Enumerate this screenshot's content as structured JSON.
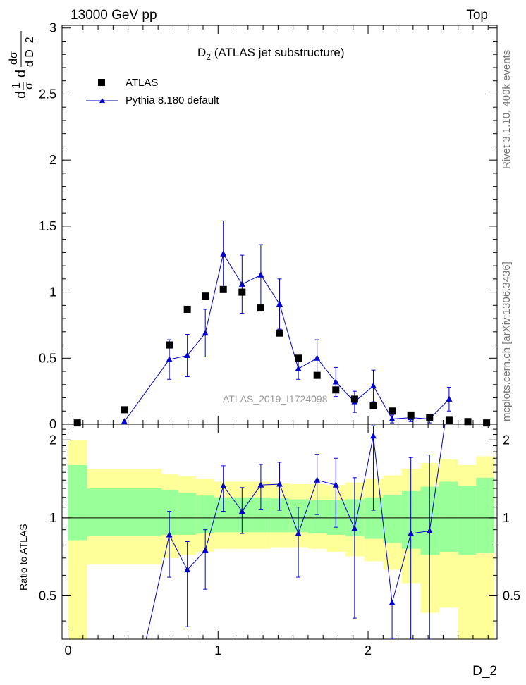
{
  "header": {
    "left": "13000 GeV pp",
    "right": "Top"
  },
  "side_labels": {
    "rivet": "Rivet 3.1.10,  400k events",
    "mcplots": "mcplots.cern.ch [arXiv:1306.3436]"
  },
  "chart_data": {
    "type": "scatter",
    "title_main": "D",
    "title_sub": "2",
    "title_rest": " (ATLAS jet substructure)",
    "watermark": "ATLAS_2019_I1724098",
    "xlabel": "D_2",
    "ylabel": {
      "frac_num": "1",
      "frac_den": "σ",
      "d1": "d",
      "d2": "d",
      "deriv_num": "dσ",
      "deriv_den": "d D_2"
    },
    "xlim": [
      -0.04,
      2.86
    ],
    "ylim": [
      0,
      3.02
    ],
    "ratio_ylim": [
      0.34,
      2.3
    ],
    "x_ticks": [
      "0",
      "1",
      "2"
    ],
    "x_tick_values": [
      0,
      1,
      2
    ],
    "y_ticks": [
      "0",
      "0.5",
      "1",
      "1.5",
      "2",
      "2.5",
      "3"
    ],
    "y_tick_values": [
      0,
      0.5,
      1,
      1.5,
      2,
      2.5,
      3
    ],
    "ratio_ylabel": "Ratio to ATLAS",
    "ratio_ticks": [
      "0.5",
      "1",
      "2"
    ],
    "ratio_tick_values": [
      0.5,
      1,
      2
    ],
    "legend": [
      "ATLAS",
      "Pythia 8.180 default"
    ],
    "series": [
      {
        "name": "ATLAS",
        "marker": "square",
        "color": "#000000",
        "x": [
          0.062,
          0.375,
          0.675,
          0.795,
          0.915,
          1.035,
          1.16,
          1.285,
          1.41,
          1.535,
          1.66,
          1.785,
          1.91,
          2.035,
          2.16,
          2.285,
          2.41,
          2.54,
          2.665,
          2.79
        ],
        "values": [
          0.01,
          0.11,
          0.6,
          0.87,
          0.97,
          1.02,
          1.0,
          0.88,
          0.69,
          0.5,
          0.37,
          0.26,
          0.19,
          0.14,
          0.1,
          0.07,
          0.05,
          0.03,
          0.02,
          0.01
        ]
      },
      {
        "name": "Pythia 8.180 default",
        "marker": "triangle",
        "color": "#0000cc",
        "x": [
          0.375,
          0.675,
          0.795,
          0.915,
          1.035,
          1.16,
          1.285,
          1.41,
          1.535,
          1.66,
          1.785,
          1.91,
          2.035,
          2.16,
          2.285,
          2.41,
          2.54
        ],
        "values": [
          0.02,
          0.49,
          0.52,
          0.69,
          1.29,
          1.06,
          1.13,
          0.91,
          0.42,
          0.5,
          0.32,
          0.17,
          0.29,
          0.04,
          0.05,
          0.04,
          0.19
        ],
        "err": [
          0.0,
          0.15,
          0.16,
          0.18,
          0.25,
          0.22,
          0.23,
          0.19,
          0.08,
          0.14,
          0.11,
          0.08,
          0.12,
          0.03,
          0.03,
          0.03,
          0.09
        ]
      }
    ],
    "ratio": {
      "x": [
        0.675,
        0.795,
        0.915,
        1.035,
        1.16,
        1.285,
        1.41,
        1.535,
        1.66,
        1.785,
        1.91,
        2.035,
        2.16,
        2.285,
        2.41
      ],
      "values": [
        0.86,
        0.63,
        0.75,
        1.33,
        1.06,
        1.34,
        1.35,
        0.87,
        1.4,
        1.34,
        0.91,
        2.07,
        0.47,
        0.87,
        0.89
      ],
      "err_low": [
        0.27,
        0.25,
        0.22,
        0.27,
        0.19,
        0.26,
        0.28,
        0.28,
        0.37,
        0.42,
        0.5,
        1.0,
        0.13,
        0.55,
        0.55
      ],
      "err_high": [
        0.2,
        0.18,
        0.15,
        0.26,
        0.25,
        0.27,
        0.29,
        0.23,
        0.36,
        0.36,
        0.52,
        0.2,
        0.0,
        0.84,
        0.86
      ],
      "offscale_left": [
        0.5,
        0.3
      ],
      "offscale_right": [
        2.54,
        3.0
      ],
      "bands": [
        {
          "x0": 0.0,
          "x1": 0.125,
          "y1_lo": 0.82,
          "y1_hi": 1.6,
          "y2_lo": 0.34,
          "y2_hi": 2.0
        },
        {
          "x0": 0.125,
          "x1": 0.625,
          "y1_lo": 0.85,
          "y1_hi": 1.3,
          "y2_lo": 0.66,
          "y2_hi": 1.55
        },
        {
          "x0": 0.625,
          "x1": 0.735,
          "y1_lo": 0.86,
          "y1_hi": 1.28,
          "y2_lo": 0.7,
          "y2_hi": 1.48
        },
        {
          "x0": 0.735,
          "x1": 0.855,
          "y1_lo": 0.86,
          "y1_hi": 1.25,
          "y2_lo": 0.72,
          "y2_hi": 1.45
        },
        {
          "x0": 0.855,
          "x1": 0.975,
          "y1_lo": 0.87,
          "y1_hi": 1.22,
          "y2_lo": 0.74,
          "y2_hi": 1.42
        },
        {
          "x0": 0.975,
          "x1": 1.1,
          "y1_lo": 0.88,
          "y1_hi": 1.2,
          "y2_lo": 0.76,
          "y2_hi": 1.38
        },
        {
          "x0": 1.1,
          "x1": 1.225,
          "y1_lo": 0.88,
          "y1_hi": 1.2,
          "y2_lo": 0.76,
          "y2_hi": 1.38
        },
        {
          "x0": 1.225,
          "x1": 1.35,
          "y1_lo": 0.88,
          "y1_hi": 1.2,
          "y2_lo": 0.76,
          "y2_hi": 1.38
        },
        {
          "x0": 1.35,
          "x1": 1.475,
          "y1_lo": 0.88,
          "y1_hi": 1.19,
          "y2_lo": 0.77,
          "y2_hi": 1.36
        },
        {
          "x0": 1.475,
          "x1": 1.6,
          "y1_lo": 0.88,
          "y1_hi": 1.18,
          "y2_lo": 0.77,
          "y2_hi": 1.35
        },
        {
          "x0": 1.6,
          "x1": 1.725,
          "y1_lo": 0.87,
          "y1_hi": 1.17,
          "y2_lo": 0.76,
          "y2_hi": 1.35
        },
        {
          "x0": 1.725,
          "x1": 1.85,
          "y1_lo": 0.86,
          "y1_hi": 1.17,
          "y2_lo": 0.74,
          "y2_hi": 1.34
        },
        {
          "x0": 1.85,
          "x1": 1.975,
          "y1_lo": 0.85,
          "y1_hi": 1.18,
          "y2_lo": 0.71,
          "y2_hi": 1.37
        },
        {
          "x0": 1.975,
          "x1": 2.1,
          "y1_lo": 0.83,
          "y1_hi": 1.2,
          "y2_lo": 0.68,
          "y2_hi": 1.42
        },
        {
          "x0": 2.1,
          "x1": 2.225,
          "y1_lo": 0.8,
          "y1_hi": 1.23,
          "y2_lo": 0.63,
          "y2_hi": 1.46
        },
        {
          "x0": 2.225,
          "x1": 2.35,
          "y1_lo": 0.76,
          "y1_hi": 1.27,
          "y2_lo": 0.56,
          "y2_hi": 1.55
        },
        {
          "x0": 2.35,
          "x1": 2.475,
          "y1_lo": 0.72,
          "y1_hi": 1.32,
          "y2_lo": 0.43,
          "y2_hi": 1.63
        },
        {
          "x0": 2.475,
          "x1": 2.6,
          "y1_lo": 0.74,
          "y1_hi": 1.38,
          "y2_lo": 0.45,
          "y2_hi": 1.68
        },
        {
          "x0": 2.6,
          "x1": 2.72,
          "y1_lo": 0.72,
          "y1_hi": 1.33,
          "y2_lo": 0.34,
          "y2_hi": 1.6
        },
        {
          "x0": 2.72,
          "x1": 2.84,
          "y1_lo": 0.73,
          "y1_hi": 1.43,
          "y2_lo": 0.34,
          "y2_hi": 1.73
        }
      ]
    },
    "colors": {
      "band_inner": "#99ff99",
      "band_outer": "#ffff99",
      "mc": "#0000cc",
      "data": "#000000",
      "watermark": "#999999"
    }
  }
}
